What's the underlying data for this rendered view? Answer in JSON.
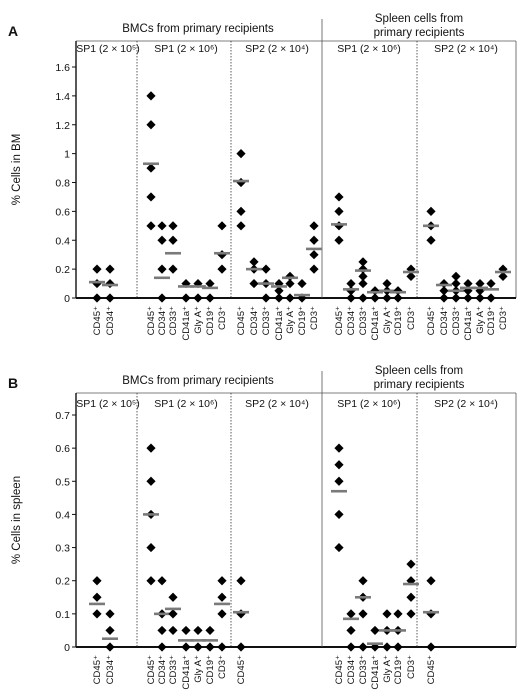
{
  "chart_data": [
    {
      "panel_label": "A",
      "type": "scatter",
      "ylabel": "% Cells in BM",
      "ylim": [
        0,
        1.6
      ],
      "yticks": [
        "0",
        "0.2",
        "0.4",
        "0.6",
        "0.8",
        "1",
        "1.2",
        "1.4",
        "1.6"
      ],
      "group_headers": [
        "BMCs from primary recipients",
        "Spleen cells from primary recipients"
      ],
      "groups": [
        {
          "label": "SP1 (2 × 10⁵)",
          "markers": [
            {
              "name": "CD45⁺",
              "points": [
                0,
                0.1,
                0.2
              ],
              "median": 0.11
            },
            {
              "name": "CD34⁺",
              "points": [
                0,
                0.1,
                0.2
              ],
              "median": 0.09
            }
          ]
        },
        {
          "label": "SP1 (2 × 10⁶)",
          "markers": [
            {
              "name": "CD45⁺",
              "points": [
                0.5,
                0.7,
                0.9,
                1.2,
                1.4
              ],
              "median": 0.93
            },
            {
              "name": "CD34⁺",
              "points": [
                0,
                0.2,
                0.4,
                0.5
              ],
              "median": 0.14
            },
            {
              "name": "CD33⁺",
              "points": [
                0.2,
                0.4,
                0.5
              ],
              "median": 0.31
            },
            {
              "name": "CD41a⁺",
              "points": [
                0,
                0.1
              ],
              "median": 0.08
            },
            {
              "name": "Gly A⁺",
              "points": [
                0,
                0.1
              ],
              "median": 0.08
            },
            {
              "name": "CD19⁺",
              "points": [
                0,
                0.1
              ],
              "median": 0.07
            },
            {
              "name": "CD3⁺",
              "points": [
                0.2,
                0.3,
                0.5
              ],
              "median": 0.31
            }
          ]
        },
        {
          "label": "SP2 (2 × 10⁴)",
          "markers": [
            {
              "name": "CD45⁺",
              "points": [
                0.5,
                0.6,
                0.8,
                1.0
              ],
              "median": 0.81
            },
            {
              "name": "CD34⁺",
              "points": [
                0.1,
                0.2,
                0.25
              ],
              "median": 0.2
            },
            {
              "name": "CD33⁺",
              "points": [
                0,
                0.1,
                0.2
              ],
              "median": 0.1
            },
            {
              "name": "CD41a⁺",
              "points": [
                0,
                0.05,
                0.1
              ],
              "median": 0.08
            },
            {
              "name": "Gly A⁺",
              "points": [
                0,
                0.1,
                0.15
              ],
              "median": 0.14
            },
            {
              "name": "CD19⁺",
              "points": [
                0,
                0.1
              ],
              "median": 0.02
            },
            {
              "name": "CD3⁺",
              "points": [
                0.2,
                0.3,
                0.4,
                0.5
              ],
              "median": 0.34
            }
          ]
        },
        {
          "label": "SP1 (2 × 10⁶)",
          "markers": [
            {
              "name": "CD45⁺",
              "points": [
                0.4,
                0.5,
                0.6,
                0.7
              ],
              "median": 0.51
            },
            {
              "name": "CD34⁺",
              "points": [
                0,
                0.05,
                0.1
              ],
              "median": 0.06
            },
            {
              "name": "CD33⁺",
              "points": [
                0,
                0.1,
                0.15,
                0.2,
                0.25
              ],
              "median": 0.19
            },
            {
              "name": "CD41a⁺",
              "points": [
                0,
                0.05
              ],
              "median": 0.04
            },
            {
              "name": "Gly A⁺",
              "points": [
                0,
                0.05,
                0.1
              ],
              "median": 0.05
            },
            {
              "name": "CD19⁺",
              "points": [
                0,
                0.05
              ],
              "median": 0.04
            },
            {
              "name": "CD3⁺",
              "points": [
                0.15,
                0.2
              ],
              "median": 0.18
            }
          ]
        },
        {
          "label": "SP2 (2 × 10⁴)",
          "markers": [
            {
              "name": "CD45⁺",
              "points": [
                0.4,
                0.5,
                0.6
              ],
              "median": 0.5
            },
            {
              "name": "CD34⁺",
              "points": [
                0,
                0.05,
                0.1
              ],
              "median": 0.09
            },
            {
              "name": "CD33⁺",
              "points": [
                0,
                0.05,
                0.1,
                0.15
              ],
              "median": 0.05
            },
            {
              "name": "CD41a⁺",
              "points": [
                0,
                0.05,
                0.1
              ],
              "median": 0.07
            },
            {
              "name": "Gly A⁺",
              "points": [
                0,
                0.05,
                0.1
              ],
              "median": 0.07
            },
            {
              "name": "CD19⁺",
              "points": [
                0,
                0.1
              ],
              "median": 0.06
            },
            {
              "name": "CD3⁺",
              "points": [
                0.15,
                0.2
              ],
              "median": 0.18
            }
          ]
        }
      ]
    },
    {
      "panel_label": "B",
      "type": "scatter",
      "ylabel": "% Cells in spleen",
      "ylim": [
        0,
        0.7
      ],
      "yticks": [
        "0",
        "0.1",
        "0.2",
        "0.3",
        "0.4",
        "0.5",
        "0.6",
        "0.7"
      ],
      "group_headers": [
        "BMCs from primary recipients",
        "Spleen cells from primary recipients"
      ],
      "groups": [
        {
          "label": "SP1 (2 × 10⁵)",
          "markers": [
            {
              "name": "CD45⁺",
              "points": [
                0.1,
                0.15,
                0.2
              ],
              "median": 0.13
            },
            {
              "name": "CD34⁺",
              "points": [
                0,
                0.05,
                0.1
              ],
              "median": 0.025
            }
          ]
        },
        {
          "label": "SP1 (2 × 10⁶)",
          "markers": [
            {
              "name": "CD45⁺",
              "points": [
                0.2,
                0.3,
                0.4,
                0.5,
                0.6
              ],
              "median": 0.4
            },
            {
              "name": "CD34⁺",
              "points": [
                0,
                0.05,
                0.1,
                0.2
              ],
              "median": 0.1
            },
            {
              "name": "CD33⁺",
              "points": [
                0.05,
                0.1,
                0.15
              ],
              "median": 0.115
            },
            {
              "name": "CD41a⁺",
              "points": [
                0,
                0.05
              ],
              "median": 0.02
            },
            {
              "name": "Gly A⁺",
              "points": [
                0,
                0.05
              ],
              "median": 0.02
            },
            {
              "name": "CD19⁺",
              "points": [
                0,
                0.05
              ],
              "median": 0.02
            },
            {
              "name": "CD3⁺",
              "points": [
                0,
                0.1,
                0.15,
                0.2
              ],
              "median": 0.13
            }
          ]
        },
        {
          "label": "SP2 (2 × 10⁴)",
          "markers": [
            {
              "name": "CD45⁺",
              "points": [
                0,
                0.1,
                0.2
              ],
              "median": 0.105
            }
          ]
        },
        {
          "label": "SP1 (2 × 10⁶)",
          "markers": [
            {
              "name": "CD45⁺",
              "points": [
                0.3,
                0.4,
                0.5,
                0.55,
                0.6
              ],
              "median": 0.47
            },
            {
              "name": "CD34⁺",
              "points": [
                0,
                0.05,
                0.1
              ],
              "median": 0.085
            },
            {
              "name": "CD33⁺",
              "points": [
                0,
                0.1,
                0.15,
                0.2
              ],
              "median": 0.15
            },
            {
              "name": "CD41a⁺",
              "points": [
                0,
                0.05
              ],
              "median": 0.01
            },
            {
              "name": "Gly A⁺",
              "points": [
                0,
                0.05,
                0.1
              ],
              "median": 0.05
            },
            {
              "name": "CD19⁺",
              "points": [
                0,
                0.05,
                0.1
              ],
              "median": 0.05
            },
            {
              "name": "CD3⁺",
              "points": [
                0.1,
                0.15,
                0.2,
                0.25
              ],
              "median": 0.19
            }
          ]
        },
        {
          "label": "SP2 (2 × 10⁴)",
          "markers": [
            {
              "name": "CD45⁺",
              "points": [
                0,
                0.1,
                0.2
              ],
              "median": 0.105
            }
          ]
        }
      ]
    }
  ]
}
